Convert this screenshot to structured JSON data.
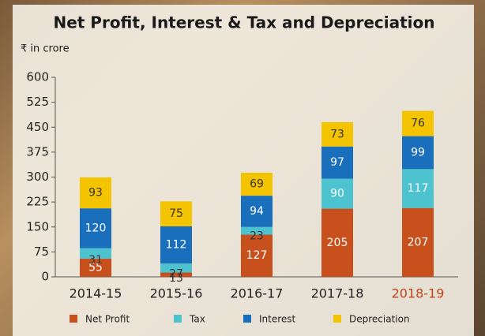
{
  "chart_data": {
    "type": "stacked_bar",
    "title": "Net Profit, Interest & Tax and Depreciation",
    "subtitle": "₹ in crore",
    "categories": [
      "2014-15",
      "2015-16",
      "2016-17",
      "2017-18",
      "2018-19"
    ],
    "category_label_colors": [
      "#222222",
      "#222222",
      "#222222",
      "#222222",
      "#c0441a"
    ],
    "series": [
      {
        "name": "Net Profit",
        "color": "#c8501c",
        "label_color": "#ffffff",
        "values": [
          55,
          13,
          127,
          205,
          207
        ]
      },
      {
        "name": "Tax",
        "color": "#4ec3d0",
        "label_color": "#ffffff",
        "values": [
          31,
          27,
          23,
          90,
          117
        ]
      },
      {
        "name": "Interest",
        "color": "#1a6fbd",
        "label_color": "#ffffff",
        "values": [
          120,
          112,
          94,
          97,
          99
        ]
      },
      {
        "name": "Depreciation",
        "color": "#f5c400",
        "label_color": "#333333",
        "values": [
          93,
          75,
          69,
          73,
          76
        ]
      }
    ],
    "ylim": [
      0,
      600
    ],
    "yticks": [
      0,
      75,
      150,
      225,
      300,
      375,
      450,
      525,
      600
    ],
    "grid": false,
    "legend": "bottom"
  }
}
